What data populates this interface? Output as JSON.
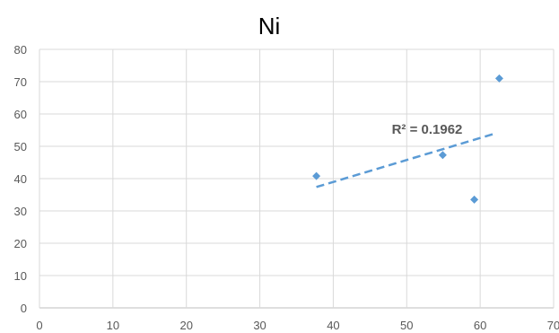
{
  "chart_data": {
    "type": "scatter",
    "title": "Ni",
    "xlabel": "",
    "ylabel": "",
    "xlim": [
      0,
      70
    ],
    "ylim": [
      0,
      80
    ],
    "x_ticks": [
      0,
      10,
      20,
      30,
      40,
      50,
      60,
      70
    ],
    "y_ticks": [
      0,
      10,
      20,
      30,
      40,
      50,
      60,
      70,
      80
    ],
    "grid": true,
    "marker_color": "#5B9BD5",
    "trendline_color": "#5B9BD5",
    "points": [
      {
        "x": 37.7,
        "y": 40.8
      },
      {
        "x": 54.9,
        "y": 47.3
      },
      {
        "x": 59.2,
        "y": 33.5
      },
      {
        "x": 62.6,
        "y": 71.0
      }
    ],
    "trendline": {
      "type": "linear",
      "style": "dashed",
      "from": {
        "x": 37.7,
        "y": 37.4
      },
      "to": {
        "x": 61.8,
        "y": 53.8
      },
      "label": "R² = 0.1962"
    }
  }
}
